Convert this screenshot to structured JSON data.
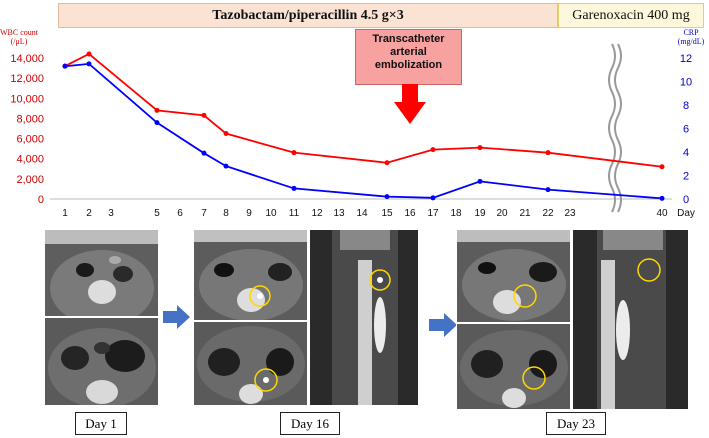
{
  "drugs": {
    "primary": "Tazobactam/piperacillin 4.5 g×3",
    "secondary": "Garenoxacin 400 mg"
  },
  "axes": {
    "left_label_line1": "WBC count",
    "left_label_line2": "(/μL)",
    "right_label_line1": "CRP",
    "right_label_line2": "(mg/dL)",
    "x_unit": "Day"
  },
  "annotation": {
    "line1": "Transcatheter",
    "line2": "arterial",
    "line3": "embolization"
  },
  "day_labels": [
    "Day 1",
    "Day 16",
    "Day 23"
  ],
  "colors": {
    "wbc": "#ff0000",
    "crp": "#0000ff",
    "arrow": "#ff0000",
    "nav_arrow": "#4472c4",
    "circle": "#ffd700"
  },
  "chart_data": {
    "type": "line",
    "x_ticks": [
      "1",
      "2",
      "3",
      "5",
      "6",
      "7",
      "8",
      "9",
      "10",
      "11",
      "12",
      "13",
      "14",
      "15",
      "16",
      "17",
      "18",
      "19",
      "20",
      "21",
      "22",
      "23",
      "40"
    ],
    "x_tick_unit": "Day",
    "axis_break_after": "23",
    "left_ticks": [
      "0",
      "2,000",
      "4,000",
      "6,000",
      "8,000",
      "10,000",
      "12,000",
      "14,000"
    ],
    "right_ticks": [
      "0",
      "2",
      "4",
      "6",
      "8",
      "10",
      "12"
    ],
    "ylim_left": [
      0,
      14000
    ],
    "ylim_right": [
      0,
      12
    ],
    "series": [
      {
        "name": "WBC count",
        "axis": "left",
        "points": [
          {
            "day": "1",
            "value": 13200
          },
          {
            "day": "2",
            "value": 14400
          },
          {
            "day": "5",
            "value": 8800
          },
          {
            "day": "7",
            "value": 8300
          },
          {
            "day": "8",
            "value": 6500
          },
          {
            "day": "11",
            "value": 4600
          },
          {
            "day": "15",
            "value": 3600
          },
          {
            "day": "17",
            "value": 4900
          },
          {
            "day": "19",
            "value": 5100
          },
          {
            "day": "22",
            "value": 4600
          },
          {
            "day": "40",
            "value": 3200
          }
        ]
      },
      {
        "name": "CRP",
        "axis": "right",
        "points": [
          {
            "day": "1",
            "value": 11.3
          },
          {
            "day": "2",
            "value": 11.5
          },
          {
            "day": "5",
            "value": 6.5
          },
          {
            "day": "7",
            "value": 3.9
          },
          {
            "day": "8",
            "value": 2.8
          },
          {
            "day": "11",
            "value": 0.9
          },
          {
            "day": "15",
            "value": 0.2
          },
          {
            "day": "17",
            "value": 0.1
          },
          {
            "day": "19",
            "value": 1.5
          },
          {
            "day": "22",
            "value": 0.8
          },
          {
            "day": "40",
            "value": 0.05
          }
        ]
      }
    ]
  }
}
